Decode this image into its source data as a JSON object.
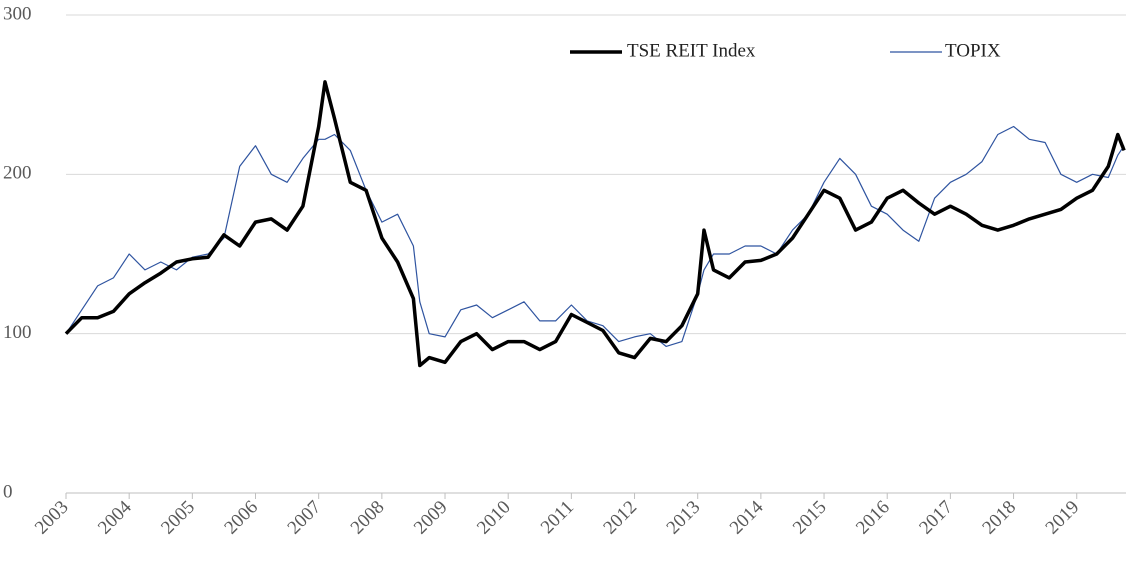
{
  "chart_data": {
    "type": "line",
    "x": [
      2003,
      2003.25,
      2003.5,
      2003.75,
      2004,
      2004.25,
      2004.5,
      2004.75,
      2005,
      2005.25,
      2005.5,
      2005.75,
      2006,
      2006.25,
      2006.5,
      2006.75,
      2007,
      2007.1,
      2007.25,
      2007.5,
      2007.75,
      2008,
      2008.25,
      2008.5,
      2008.6,
      2008.75,
      2009,
      2009.25,
      2009.5,
      2009.75,
      2010,
      2010.25,
      2010.5,
      2010.75,
      2011,
      2011.25,
      2011.5,
      2011.75,
      2012,
      2012.25,
      2012.5,
      2012.75,
      2013,
      2013.1,
      2013.25,
      2013.5,
      2013.75,
      2014,
      2014.25,
      2014.5,
      2014.75,
      2015,
      2015.25,
      2015.5,
      2015.75,
      2016,
      2016.25,
      2016.5,
      2016.75,
      2017,
      2017.25,
      2017.5,
      2017.75,
      2018,
      2018.25,
      2018.5,
      2018.75,
      2019,
      2019.25,
      2019.5,
      2019.65,
      2019.75
    ],
    "series": [
      {
        "name": "TSE REIT Index",
        "color": "#000000",
        "width": 3.5,
        "values": [
          100,
          110,
          110,
          114,
          125,
          132,
          138,
          145,
          147,
          148,
          162,
          155,
          170,
          172,
          165,
          180,
          230,
          258,
          235,
          195,
          190,
          160,
          145,
          122,
          80,
          85,
          82,
          95,
          100,
          90,
          95,
          95,
          90,
          95,
          112,
          107,
          102,
          88,
          85,
          97,
          95,
          105,
          125,
          165,
          140,
          135,
          145,
          146,
          150,
          160,
          175,
          190,
          185,
          165,
          170,
          185,
          190,
          182,
          175,
          180,
          175,
          168,
          165,
          168,
          172,
          175,
          178,
          185,
          190,
          205,
          225,
          215
        ]
      },
      {
        "name": "TOPIX",
        "color": "#2f54a0",
        "width": 1.2,
        "values": [
          100,
          115,
          130,
          135,
          150,
          140,
          145,
          140,
          148,
          150,
          160,
          205,
          218,
          200,
          195,
          210,
          222,
          222,
          225,
          215,
          190,
          170,
          175,
          155,
          120,
          100,
          98,
          115,
          118,
          110,
          115,
          120,
          108,
          108,
          118,
          108,
          105,
          95,
          98,
          100,
          92,
          95,
          125,
          140,
          150,
          150,
          155,
          155,
          150,
          165,
          175,
          195,
          210,
          200,
          180,
          175,
          165,
          158,
          185,
          195,
          200,
          208,
          225,
          230,
          222,
          220,
          200,
          195,
          200,
          198,
          212,
          218
        ]
      }
    ],
    "xlim": [
      2003,
      2019.78
    ],
    "xticks": [
      2003,
      2004,
      2005,
      2006,
      2007,
      2008,
      2009,
      2010,
      2011,
      2012,
      2013,
      2014,
      2015,
      2016,
      2017,
      2018,
      2019
    ],
    "ylim": [
      0,
      300
    ],
    "yticks": [
      0,
      100,
      200,
      300
    ],
    "grid": true,
    "legend": "top"
  }
}
